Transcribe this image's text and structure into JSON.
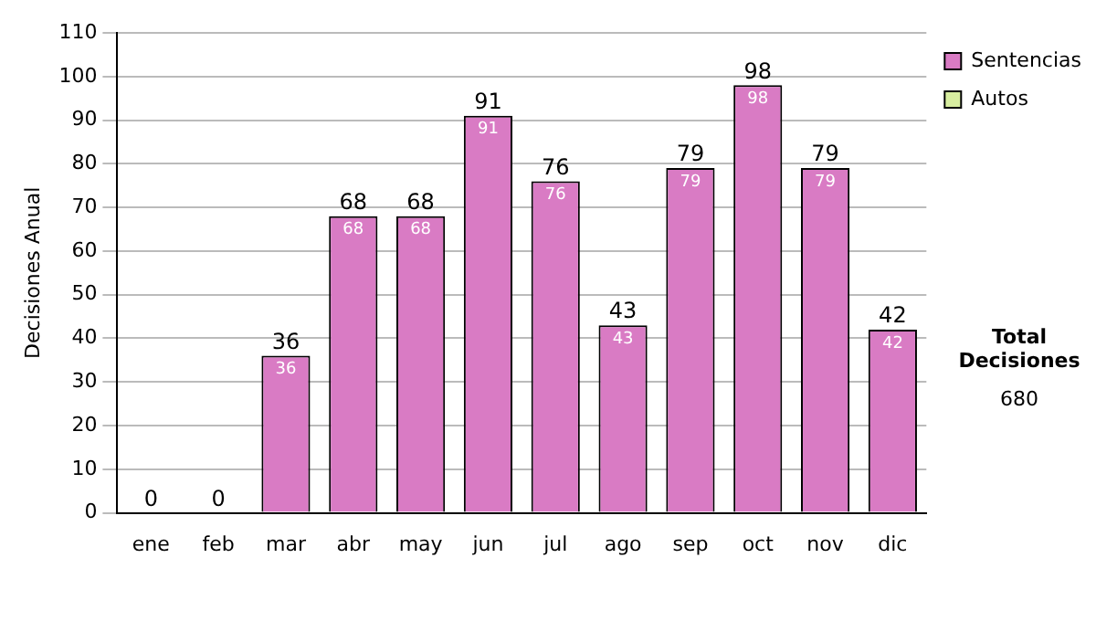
{
  "chart_data": {
    "type": "bar",
    "ylabel": "Decisiones Anual",
    "categories": [
      "ene",
      "feb",
      "mar",
      "abr",
      "may",
      "jun",
      "jul",
      "ago",
      "sep",
      "oct",
      "nov",
      "dic"
    ],
    "series": [
      {
        "name": "Sentencias",
        "color": "#d97bc4",
        "values": [
          0,
          0,
          36,
          68,
          68,
          91,
          76,
          43,
          79,
          98,
          79,
          42
        ],
        "value_labels": [
          null,
          null,
          "36",
          "68",
          "68",
          "91",
          "76",
          "43",
          "79",
          "98",
          "79",
          "42"
        ]
      },
      {
        "name": "Autos",
        "color": "#d8eea0",
        "values": [
          0,
          0,
          0,
          0,
          0,
          0,
          0,
          0,
          0,
          0,
          0,
          0
        ]
      }
    ],
    "stacked": true,
    "totals": [
      "0",
      "0",
      "36",
      "68",
      "68",
      "91",
      "76",
      "43",
      "79",
      "98",
      "79",
      "42"
    ],
    "ylim": [
      0,
      110
    ],
    "yticks": [
      0,
      10,
      20,
      30,
      40,
      50,
      60,
      70,
      80,
      90,
      100,
      110
    ],
    "grid": "y",
    "legend": "right",
    "annotations": [
      "Total Decisiones",
      "680"
    ]
  }
}
